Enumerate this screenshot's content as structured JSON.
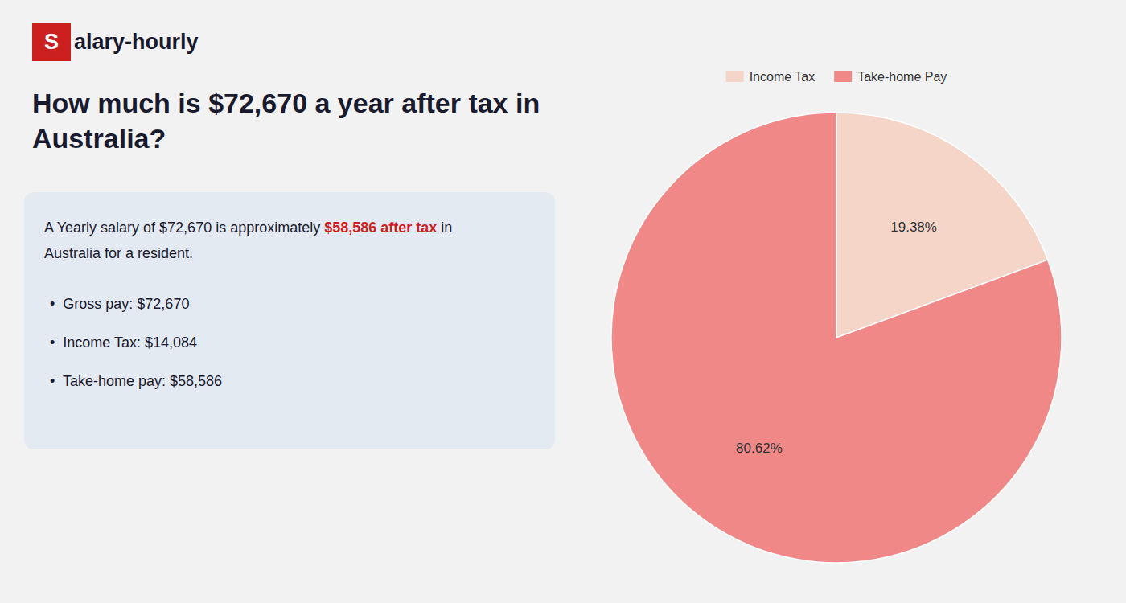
{
  "chart_data": {
    "type": "pie",
    "title": "How much is $72,670 a year after tax in Australia?",
    "categories": [
      "Income Tax",
      "Take-home Pay"
    ],
    "values": [
      19.38,
      80.62
    ],
    "value_labels": [
      "19.38%",
      "80.62%"
    ],
    "colors": [
      "#f5d5c8",
      "#f08888"
    ],
    "data_labels": true,
    "legend": "top",
    "annotations": [
      {
        "text": "S",
        "color": "#cc1f1f"
      },
      {
        "text": "alary-hourly"
      },
      {
        "text": "A Yearly salary of $72,670 is approximately "
      },
      {
        "text": "$58,586 after tax",
        "color": "#cc1f1f"
      },
      {
        "text": " in"
      },
      {
        "text": "Australia for a resident."
      },
      {
        "text": "•  Gross pay: $72,670"
      },
      {
        "text": "•  Income Tax: $14,084"
      },
      {
        "text": "•  Take-home pay: $58,586"
      }
    ]
  }
}
